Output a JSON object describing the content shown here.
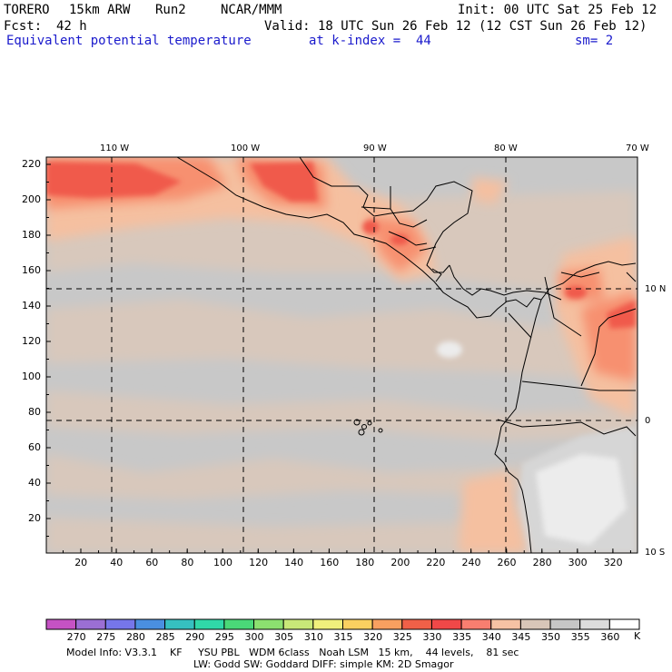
{
  "header": {
    "model": "TORERO",
    "resolution": "15km ARW",
    "run": "Run2",
    "org": "NCAR/MMM",
    "init": "Init: 00 UTC Sat 25 Feb 12",
    "fcst_label": "Fcst:",
    "fcst_value": "42 h",
    "valid": "Valid: 18 UTC Sun 26 Feb 12 (12 CST Sun 26 Feb 12)"
  },
  "field": {
    "name": "Equivalent potential temperature",
    "level": "at k-index =  44",
    "smoothing": "sm= 2"
  },
  "map": {
    "top_lon_labels": [
      "110 W",
      "100 W",
      "90 W",
      "80 W",
      "70 W"
    ],
    "right_lat_labels": [
      "10 N",
      "0",
      "10 S"
    ],
    "left_y_ticks": [
      "220",
      "200",
      "180",
      "160",
      "140",
      "120",
      "100",
      "80",
      "60",
      "40",
      "20"
    ],
    "bottom_x_ticks": [
      "20",
      "40",
      "60",
      "80",
      "100",
      "120",
      "140",
      "160",
      "180",
      "200",
      "220",
      "240",
      "260",
      "280",
      "300",
      "320"
    ]
  },
  "colorbar": {
    "values": [
      "270",
      "275",
      "280",
      "285",
      "290",
      "295",
      "300",
      "305",
      "310",
      "315",
      "320",
      "325",
      "330",
      "335",
      "340",
      "345",
      "350",
      "355",
      "360"
    ],
    "unit": "K",
    "colors": [
      "#c552c4",
      "#9b6fd4",
      "#7676ea",
      "#4a8fe0",
      "#36c0c0",
      "#30d8a8",
      "#4ad878",
      "#8ce070",
      "#c8e878",
      "#f0f07c",
      "#fad060",
      "#f8a060",
      "#f06048",
      "#f04848",
      "#f87e70",
      "#f6c2a4",
      "#d8c6b8",
      "#c6c6c6",
      "#dcdcdc",
      "#ffffff"
    ]
  },
  "footer": {
    "line1": "Model Info: V3.3.1    KF     YSU PBL   WDM 6class   Noah LSM   15 km,    44 levels,    81 sec",
    "line2": "LW: Godd SW: Goddard DIFF: simple KM: 2D Smagor"
  }
}
